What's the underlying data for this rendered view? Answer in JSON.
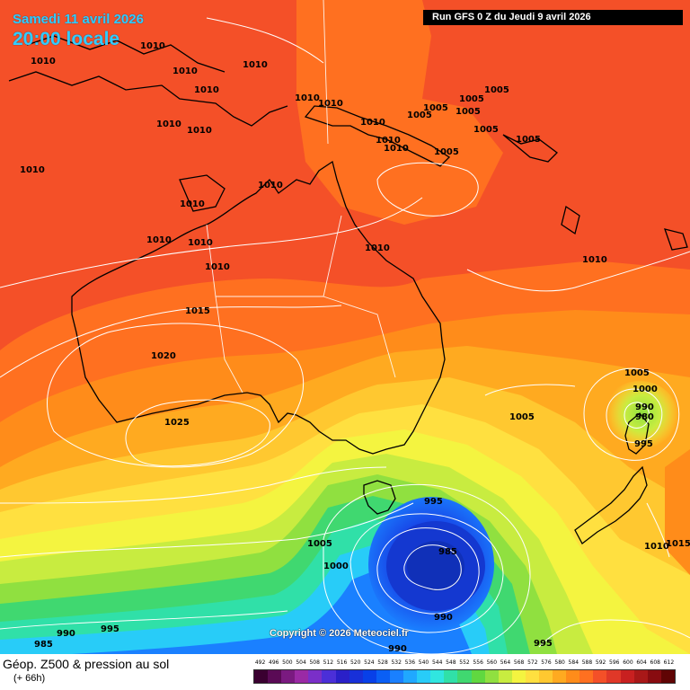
{
  "header": {
    "valid_date": "Samedi 11 avril 2026",
    "valid_time": "20:00 locale",
    "run_info": "Run GFS 0 Z du Jeudi 9 avril 2026"
  },
  "copyright": "Copyright © 2026 Meteociel.fr",
  "footer": {
    "title": "Géop. Z500 & pression au sol",
    "forecast_hour": "(+ 66h)"
  },
  "legend": {
    "labels": [
      "492",
      "496",
      "500",
      "504",
      "508",
      "512",
      "516",
      "520",
      "524",
      "528",
      "532",
      "536",
      "540",
      "544",
      "548",
      "552",
      "556",
      "560",
      "564",
      "568",
      "572",
      "576",
      "580",
      "584",
      "588",
      "592",
      "596",
      "600",
      "604",
      "608",
      "612"
    ],
    "colors": [
      "#3a0030",
      "#5a0a55",
      "#7a1a80",
      "#9a2aa5",
      "#7a2fc8",
      "#4b2fd8",
      "#2a20c8",
      "#1830d8",
      "#0840e8",
      "#0a5ff5",
      "#1a80ff",
      "#20a8ff",
      "#28ccf8",
      "#30e6e0",
      "#30e0a8",
      "#40d870",
      "#60d840",
      "#90e040",
      "#c8ec40",
      "#f4f440",
      "#ffe040",
      "#ffc830",
      "#ffaa20",
      "#ff8c1a",
      "#ff7020",
      "#f45028",
      "#e03828",
      "#c82020",
      "#a81818",
      "#880c10",
      "#600404"
    ]
  },
  "pressure_labels": [
    "1010",
    "1010",
    "1010",
    "1010",
    "1010",
    "1010",
    "1010",
    "1010",
    "1010",
    "1010",
    "1010",
    "1010",
    "1010",
    "1010",
    "1010",
    "1010",
    "1010",
    "1010",
    "1005",
    "1005",
    "1005",
    "1005",
    "1005",
    "1005",
    "1005",
    "1015",
    "1020",
    "1025",
    "1005",
    "1000",
    "990",
    "980",
    "995",
    "995",
    "985",
    "990",
    "990",
    "985",
    "995",
    "990",
    "995",
    "1005",
    "1000",
    "1010",
    "1015"
  ]
}
